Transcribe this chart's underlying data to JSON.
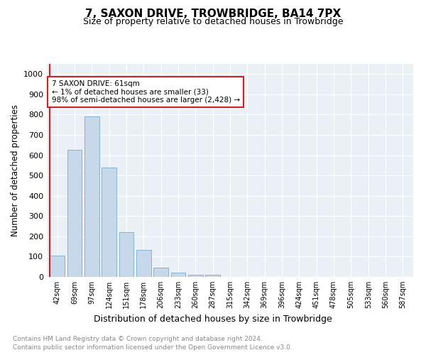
{
  "title": "7, SAXON DRIVE, TROWBRIDGE, BA14 7PX",
  "subtitle": "Size of property relative to detached houses in Trowbridge",
  "xlabel": "Distribution of detached houses by size in Trowbridge",
  "ylabel": "Number of detached properties",
  "bar_labels": [
    "42sqm",
    "69sqm",
    "97sqm",
    "124sqm",
    "151sqm",
    "178sqm",
    "206sqm",
    "233sqm",
    "260sqm",
    "287sqm",
    "315sqm",
    "342sqm",
    "369sqm",
    "396sqm",
    "424sqm",
    "451sqm",
    "478sqm",
    "505sqm",
    "533sqm",
    "560sqm",
    "587sqm"
  ],
  "bar_values": [
    105,
    625,
    790,
    540,
    220,
    133,
    45,
    20,
    12,
    9,
    0,
    0,
    0,
    0,
    0,
    0,
    0,
    0,
    0,
    0,
    0
  ],
  "bar_color": "#c8d8eb",
  "bar_edge_color": "#7aabcc",
  "highlight_color": "#cc2222",
  "annotation_text": "7 SAXON DRIVE: 61sqm\n← 1% of detached houses are smaller (33)\n98% of semi-detached houses are larger (2,428) →",
  "annotation_box_color": "#ffffff",
  "annotation_box_edge": "#cc2222",
  "ylim": [
    0,
    1050
  ],
  "yticks": [
    0,
    100,
    200,
    300,
    400,
    500,
    600,
    700,
    800,
    900,
    1000
  ],
  "footer_line1": "Contains HM Land Registry data © Crown copyright and database right 2024.",
  "footer_line2": "Contains public sector information licensed under the Open Government Licence v3.0.",
  "plot_bg_color": "#eaf0f6"
}
